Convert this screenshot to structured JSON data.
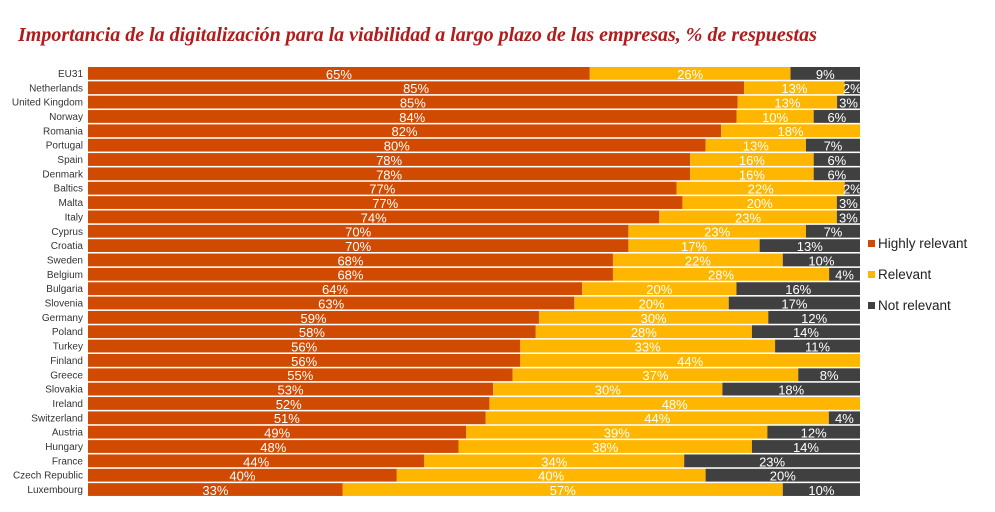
{
  "chart_data": {
    "type": "bar",
    "orientation": "horizontal",
    "stacked": true,
    "title": "Importancia de la digitalización para la viabilidad a largo plazo de las empresas, % de respuestas",
    "legend_position": "right",
    "grid": false,
    "categories": [
      "EU31",
      "Netherlands",
      "United Kingdom",
      "Norway",
      "Romania",
      "Portugal",
      "Spain",
      "Denmark",
      "Baltics",
      "Malta",
      "Italy",
      "Cyprus",
      "Croatia",
      "Sweden",
      "Belgium",
      "Bulgaria",
      "Slovenia",
      "Germany",
      "Poland",
      "Turkey",
      "Finland",
      "Greece",
      "Slovakia",
      "Ireland",
      "Switzerland",
      "Austria",
      "Hungary",
      "France",
      "Czech Republic",
      "Luxembourg"
    ],
    "series": [
      {
        "name": "Highly relevant",
        "color": "#d04a02",
        "values": [
          65,
          85,
          85,
          84,
          82,
          80,
          78,
          78,
          77,
          77,
          74,
          70,
          70,
          68,
          68,
          64,
          63,
          59,
          58,
          56,
          56,
          55,
          53,
          52,
          51,
          49,
          48,
          44,
          40,
          33
        ]
      },
      {
        "name": "Relevant",
        "color": "#ffb600",
        "values": [
          26,
          13,
          13,
          10,
          18,
          13,
          16,
          16,
          22,
          20,
          23,
          23,
          17,
          22,
          28,
          20,
          20,
          30,
          28,
          33,
          44,
          37,
          30,
          48,
          44,
          39,
          38,
          34,
          40,
          57
        ]
      },
      {
        "name": "Not relevant",
        "color": "#404041",
        "values": [
          9,
          2,
          3,
          6,
          0,
          7,
          6,
          6,
          2,
          3,
          3,
          7,
          13,
          10,
          4,
          16,
          17,
          12,
          14,
          11,
          0,
          8,
          18,
          0,
          4,
          12,
          14,
          23,
          20,
          10
        ]
      }
    ],
    "value_suffix": "%"
  }
}
